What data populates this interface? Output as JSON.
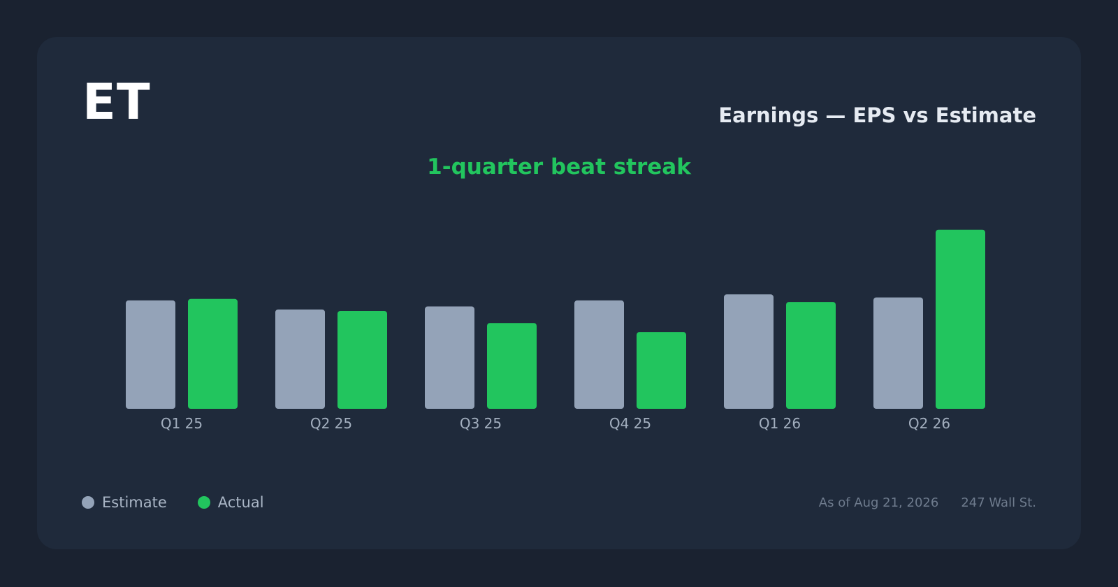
{
  "ticker": "ET",
  "header": {
    "title": "Earnings — EPS vs Estimate",
    "headline": "1-quarter beat streak"
  },
  "colors": {
    "estimate": "#94a3b8",
    "actual": "#22c55e",
    "background": "#1a2230",
    "card": "#1f2a3b"
  },
  "legend": {
    "estimate_label": "Estimate",
    "actual_label": "Actual"
  },
  "footer": {
    "as_of": "As of Aug 21, 2026",
    "source": "247 Wall St."
  },
  "chart_data": {
    "type": "bar",
    "categories": [
      "Q1 25",
      "Q2 25",
      "Q3 25",
      "Q4 25",
      "Q1 26",
      "Q2 26"
    ],
    "series": [
      {
        "name": "Estimate",
        "values": [
          0.36,
          0.33,
          0.34,
          0.36,
          0.38,
          0.37
        ]
      },
      {
        "name": "Actual",
        "values": [
          0.365,
          0.325,
          0.285,
          0.255,
          0.355,
          0.595
        ]
      }
    ],
    "ylim": [
      0,
      0.65
    ],
    "grid": false,
    "legend_position": "bottom-left"
  }
}
